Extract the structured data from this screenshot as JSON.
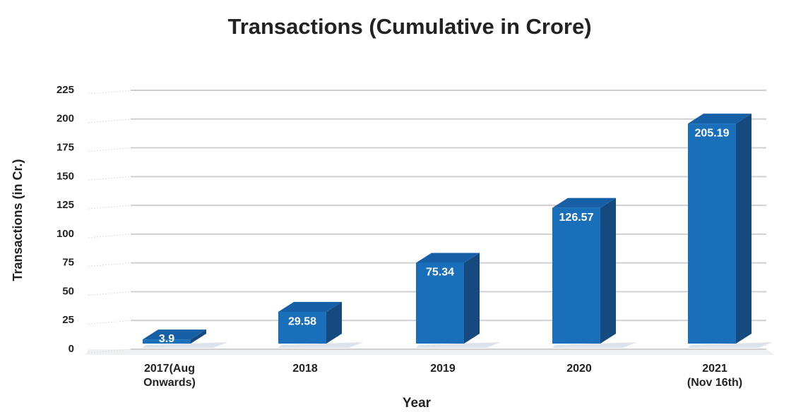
{
  "chart_data": {
    "type": "bar3d",
    "title": "Transactions (Cumulative in Crore)",
    "x_label": "Year",
    "y_label": "Transactions (in Cr.)",
    "categories": [
      "2017(Aug\nOnwards)",
      "2018",
      "2019",
      "2020",
      "2021\n(Nov 16th)"
    ],
    "values": [
      3.9,
      29.58,
      75.34,
      126.57,
      205.19
    ],
    "color": "#1a6fba",
    "ylim": [
      0,
      225
    ],
    "yticks": [
      0,
      25,
      50,
      75,
      100,
      125,
      150,
      175,
      200,
      225
    ],
    "grid": true
  }
}
